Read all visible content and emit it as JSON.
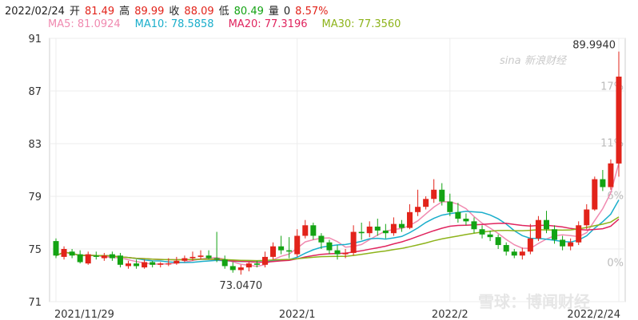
{
  "header": {
    "date": "2022/02/24",
    "open_label": "开",
    "open": "81.49",
    "high_label": "高",
    "high": "89.99",
    "close_label": "收",
    "close": "88.09",
    "low_label": "低",
    "low": "80.49",
    "volume_label": "量",
    "volume": "0",
    "change": "8.57%"
  },
  "ma": [
    {
      "label": "MA5: 81.0924",
      "color": "#f08ab0"
    },
    {
      "label": "MA10: 78.5858",
      "color": "#1aaecb"
    },
    {
      "label": "MA20: 77.3196",
      "color": "#e0245e"
    },
    {
      "label": "MA30: 77.3560",
      "color": "#8db31a"
    }
  ],
  "colors": {
    "up": "#e2231a",
    "down": "#13a313",
    "grid": "#ececec",
    "axis": "#cfcfcf"
  },
  "watermark": {
    "top_brand": "新浪财经",
    "top_sub": "sina",
    "bottom": "雪球：博闻财经"
  },
  "chart_data": {
    "type": "candlestick",
    "ylim": [
      71,
      91
    ],
    "yticks": [
      91,
      87,
      83,
      79,
      75,
      71
    ],
    "right_ticks": [
      "17%",
      "11%",
      "6%",
      "0%"
    ],
    "x_labels": [
      "2021/11/29",
      "2022/1",
      "2022/2",
      "2022/2/24"
    ],
    "annotations": {
      "max": "89.9940",
      "min": "73.0470"
    },
    "candles": [
      [
        75.6,
        74.5,
        75.8,
        74.3
      ],
      [
        74.4,
        75.0,
        75.2,
        74.2
      ],
      [
        74.8,
        74.5,
        75.0,
        74.3
      ],
      [
        74.6,
        74.0,
        74.9,
        73.9
      ],
      [
        73.9,
        74.6,
        74.8,
        73.8
      ],
      [
        74.5,
        74.4,
        74.8,
        74.2
      ],
      [
        74.3,
        74.5,
        74.7,
        74.1
      ],
      [
        74.6,
        74.3,
        74.8,
        74.1
      ],
      [
        74.5,
        73.8,
        74.7,
        73.6
      ],
      [
        73.7,
        73.9,
        74.1,
        73.5
      ],
      [
        73.9,
        73.7,
        74.2,
        73.5
      ],
      [
        73.6,
        74.0,
        74.2,
        73.5
      ],
      [
        74.0,
        73.8,
        74.1,
        73.6
      ],
      [
        73.8,
        73.9,
        74.0,
        73.6
      ],
      [
        73.9,
        73.9,
        74.3,
        73.7
      ],
      [
        73.9,
        74.1,
        74.4,
        73.8
      ],
      [
        74.1,
        74.3,
        74.5,
        74.0
      ],
      [
        74.3,
        74.4,
        74.8,
        74.1
      ],
      [
        74.4,
        74.5,
        74.9,
        74.2
      ],
      [
        74.5,
        74.3,
        74.9,
        74.2
      ],
      [
        74.3,
        74.2,
        76.3,
        74.0
      ],
      [
        74.2,
        73.7,
        74.5,
        73.5
      ],
      [
        73.7,
        73.4,
        74.0,
        73.2
      ],
      [
        73.4,
        73.6,
        73.8,
        73.05
      ],
      [
        73.6,
        73.9,
        74.0,
        73.3
      ],
      [
        73.9,
        73.8,
        74.1,
        73.6
      ],
      [
        73.8,
        74.4,
        74.8,
        73.6
      ],
      [
        74.4,
        75.2,
        75.5,
        74.2
      ],
      [
        75.2,
        74.9,
        76.0,
        74.6
      ],
      [
        74.9,
        74.8,
        75.9,
        74.3
      ],
      [
        74.6,
        76.0,
        76.5,
        74.4
      ],
      [
        76.0,
        76.8,
        77.2,
        75.8
      ],
      [
        76.8,
        76.0,
        77.0,
        75.7
      ],
      [
        76.0,
        75.5,
        76.2,
        75.0
      ],
      [
        75.5,
        74.9,
        75.7,
        74.6
      ],
      [
        74.9,
        74.6,
        75.3,
        74.2
      ],
      [
        74.6,
        74.7,
        75.0,
        74.3
      ],
      [
        74.7,
        76.3,
        76.8,
        74.5
      ],
      [
        76.3,
        76.2,
        77.0,
        75.7
      ],
      [
        76.2,
        76.7,
        77.1,
        75.9
      ],
      [
        76.7,
        76.4,
        77.3,
        76.0
      ],
      [
        76.4,
        76.2,
        76.9,
        75.8
      ],
      [
        76.2,
        76.9,
        77.4,
        76.0
      ],
      [
        76.9,
        76.6,
        77.2,
        76.3
      ],
      [
        76.6,
        77.8,
        78.4,
        76.5
      ],
      [
        77.8,
        78.2,
        79.5,
        77.5
      ],
      [
        78.2,
        78.8,
        79.0,
        78.0
      ],
      [
        78.8,
        79.5,
        80.3,
        78.5
      ],
      [
        79.5,
        78.6,
        80.0,
        78.3
      ],
      [
        78.6,
        77.8,
        79.2,
        77.5
      ],
      [
        77.8,
        77.3,
        78.5,
        77.0
      ],
      [
        77.3,
        77.1,
        77.7,
        76.8
      ],
      [
        77.1,
        76.5,
        77.4,
        76.2
      ],
      [
        76.5,
        76.1,
        76.8,
        75.8
      ],
      [
        76.1,
        75.9,
        76.4,
        75.6
      ],
      [
        75.9,
        75.3,
        76.1,
        75.0
      ],
      [
        75.3,
        74.8,
        75.5,
        74.5
      ],
      [
        74.8,
        74.5,
        75.0,
        74.3
      ],
      [
        74.5,
        74.8,
        75.1,
        74.2
      ],
      [
        74.8,
        75.8,
        76.9,
        74.6
      ],
      [
        75.8,
        77.2,
        77.5,
        75.6
      ],
      [
        77.2,
        76.5,
        77.9,
        76.2
      ],
      [
        76.5,
        75.7,
        76.8,
        75.4
      ],
      [
        75.7,
        75.2,
        76.0,
        74.9
      ],
      [
        75.2,
        75.5,
        75.8,
        74.9
      ],
      [
        75.5,
        76.8,
        77.1,
        75.3
      ],
      [
        76.8,
        78.0,
        78.4,
        76.5
      ],
      [
        78.0,
        80.3,
        80.5,
        77.9
      ],
      [
        80.3,
        79.7,
        81.0,
        79.4
      ],
      [
        79.7,
        81.5,
        81.8,
        79.5
      ],
      [
        81.49,
        88.09,
        89.99,
        80.49
      ]
    ]
  }
}
